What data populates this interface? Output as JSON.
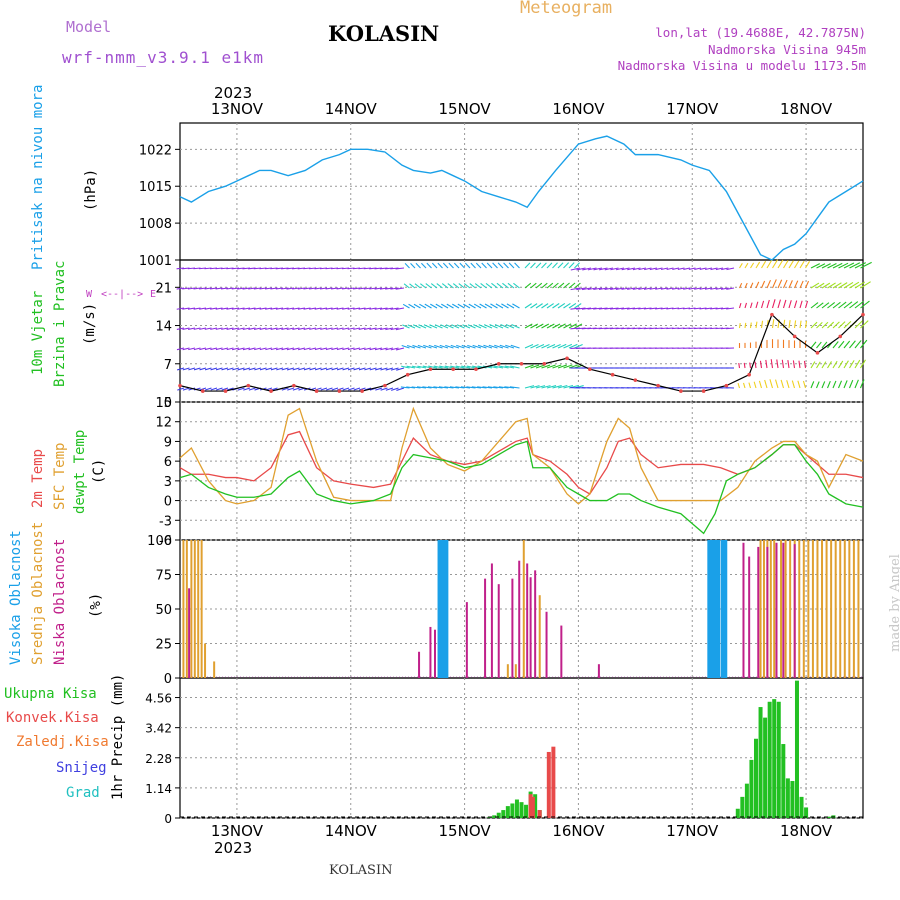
{
  "header": {
    "model_label": "Model",
    "model_name": "wrf-nmm_v3.9.1 e1km",
    "station": "KOLASIN",
    "meteogram_label": "Meteogram",
    "lonlat": "lon,lat (19.4688E, 42.7875N)",
    "elevation": "Nadmorska Visina 945m",
    "model_elevation": "Nadmorska Visina u modelu 1173.5m",
    "year": "2023",
    "footer_station": "KOLASIN",
    "watermark": "made by Angel"
  },
  "colors": {
    "pressure": "#1aa0e8",
    "t2m": "#e84a4a",
    "sfc": "#e0a030",
    "dewpt": "#22c022",
    "high_cloud": "#1aa0e8",
    "mid_cloud": "#e0a030",
    "low_cloud": "#c0208a",
    "total_rain": "#22c022",
    "conv_rain": "#e84a4a",
    "frozen": "#f07a30",
    "snow": "#4040e0",
    "graupel": "#20c0c0",
    "wind_label": "#22c022",
    "axes_label": "#1a9ad8"
  },
  "chart_data": [
    {
      "type": "line",
      "panel": "pressure",
      "labels": [
        "Pritisak na nivou mora",
        "(hPa)"
      ],
      "yticks": [
        1001,
        1008,
        1015,
        1022
      ],
      "ylim": [
        1001,
        1027
      ],
      "xticks": [
        "13NOV",
        "14NOV",
        "15NOV",
        "16NOV",
        "17NOV",
        "18NOV"
      ],
      "x_day_range": [
        12.5,
        18.5
      ],
      "series": [
        {
          "key": "pressure",
          "x": [
            12.5,
            12.6,
            12.75,
            12.9,
            13.0,
            13.1,
            13.2,
            13.3,
            13.45,
            13.6,
            13.75,
            13.9,
            14.0,
            14.15,
            14.3,
            14.45,
            14.55,
            14.7,
            14.8,
            14.9,
            15.0,
            15.15,
            15.3,
            15.45,
            15.55,
            15.65,
            15.8,
            16.0,
            16.15,
            16.25,
            16.4,
            16.5,
            16.7,
            16.9,
            17.0,
            17.15,
            17.3,
            17.45,
            17.6,
            17.7,
            17.75,
            17.8,
            17.9,
            18.0,
            18.1,
            18.2,
            18.35,
            18.5
          ],
          "values": [
            1013,
            1012,
            1014,
            1015,
            1016,
            1017,
            1018,
            1018,
            1017,
            1018,
            1020,
            1021,
            1022,
            1022,
            1021.5,
            1019,
            1018,
            1017.5,
            1018,
            1017,
            1016,
            1014,
            1013,
            1012,
            1011,
            1014,
            1018,
            1023,
            1024,
            1024.5,
            1023,
            1021,
            1021,
            1020,
            1019,
            1018,
            1014,
            1008,
            1002,
            1001,
            1002,
            1003,
            1004,
            1006,
            1009,
            1012,
            1014,
            1016
          ]
        }
      ]
    },
    {
      "type": "scatter",
      "panel": "wind",
      "labels": [
        "10m Vjetar",
        "Brzina i Pravac",
        "(m/s)"
      ],
      "yticks": [
        0,
        7,
        14,
        21
      ],
      "ylim": [
        0,
        26
      ],
      "series": [
        {
          "key": "wind_speed",
          "x": [
            12.5,
            12.7,
            12.9,
            13.1,
            13.3,
            13.5,
            13.7,
            13.9,
            14.1,
            14.3,
            14.5,
            14.7,
            14.9,
            15.1,
            15.3,
            15.5,
            15.7,
            15.9,
            16.1,
            16.3,
            16.5,
            16.7,
            16.9,
            17.1,
            17.3,
            17.5,
            17.7,
            17.9,
            18.1,
            18.3,
            18.5
          ],
          "values": [
            3,
            2,
            2,
            3,
            2,
            3,
            2,
            2,
            2,
            3,
            5,
            6,
            6,
            6,
            7,
            7,
            7,
            8,
            6,
            5,
            4,
            3,
            2,
            2,
            3,
            5,
            16,
            12,
            9,
            12,
            16
          ]
        }
      ]
    },
    {
      "type": "line",
      "panel": "temperature",
      "labels": [
        "2m Temp",
        "SFC Temp",
        "dewpt Temp",
        "(C)"
      ],
      "yticks": [
        -6,
        -3,
        0,
        3,
        6,
        9,
        12,
        15
      ],
      "ylim": [
        -6,
        15
      ],
      "series": [
        {
          "key": "t2m",
          "name": "2m Temp",
          "x": [
            12.5,
            12.6,
            12.75,
            12.9,
            13.0,
            13.15,
            13.3,
            13.45,
            13.55,
            13.7,
            13.85,
            14.0,
            14.2,
            14.35,
            14.45,
            14.55,
            14.7,
            14.85,
            15.0,
            15.15,
            15.3,
            15.45,
            15.55,
            15.6,
            15.75,
            15.9,
            16.0,
            16.1,
            16.25,
            16.35,
            16.45,
            16.55,
            16.7,
            16.9,
            17.1,
            17.25,
            17.4,
            17.55,
            17.7,
            17.8,
            17.9,
            18.0,
            18.1,
            18.2,
            18.35,
            18.5
          ],
          "values": [
            5,
            4,
            4,
            3.5,
            3.5,
            3,
            5,
            10,
            10.5,
            5,
            3,
            2.5,
            2,
            2.5,
            6,
            9.5,
            7,
            6,
            5.5,
            6,
            7.5,
            9,
            9.5,
            7,
            6,
            4,
            2,
            1,
            5,
            9,
            9.5,
            7,
            5,
            5.5,
            5.5,
            5,
            4,
            5,
            7,
            8.5,
            8.5,
            7,
            5.5,
            4,
            4,
            3.5
          ]
        },
        {
          "key": "sfc",
          "name": "SFC Temp",
          "x": [
            12.5,
            12.6,
            12.75,
            12.9,
            13.0,
            13.15,
            13.3,
            13.45,
            13.55,
            13.7,
            13.85,
            14.0,
            14.2,
            14.35,
            14.45,
            14.55,
            14.7,
            14.85,
            15.0,
            15.15,
            15.3,
            15.45,
            15.55,
            15.6,
            15.75,
            15.9,
            16.0,
            16.1,
            16.25,
            16.35,
            16.45,
            16.55,
            16.7,
            16.9,
            17.1,
            17.25,
            17.4,
            17.55,
            17.7,
            17.8,
            17.9,
            18.0,
            18.1,
            18.2,
            18.35,
            18.5
          ],
          "values": [
            6.5,
            8,
            3,
            0,
            -0.5,
            0,
            2,
            13,
            14,
            6,
            0.5,
            0,
            0,
            0,
            8,
            14,
            8,
            5.5,
            4.5,
            6,
            9,
            12,
            12.5,
            7,
            5,
            1,
            -0.5,
            1,
            9,
            12.5,
            11,
            5,
            0,
            0,
            0,
            0,
            2,
            6,
            8,
            9,
            9,
            7,
            6,
            2,
            7,
            6
          ]
        },
        {
          "key": "dewpt",
          "name": "dewpt Temp",
          "x": [
            12.5,
            12.6,
            12.75,
            12.9,
            13.0,
            13.15,
            13.3,
            13.45,
            13.55,
            13.7,
            13.85,
            14.0,
            14.2,
            14.35,
            14.45,
            14.55,
            14.7,
            14.85,
            15.0,
            15.15,
            15.3,
            15.45,
            15.55,
            15.6,
            15.75,
            15.9,
            16.0,
            16.1,
            16.25,
            16.35,
            16.45,
            16.55,
            16.7,
            16.9,
            17.0,
            17.1,
            17.2,
            17.3,
            17.4,
            17.55,
            17.7,
            17.8,
            17.9,
            18.0,
            18.1,
            18.2,
            18.35,
            18.5
          ],
          "values": [
            3.5,
            4,
            2,
            1,
            0.5,
            0.5,
            1,
            3.5,
            4.5,
            1,
            0,
            -0.5,
            0,
            1,
            5,
            7,
            6.5,
            6,
            5,
            5.5,
            7,
            8.5,
            9,
            5,
            5,
            2,
            1,
            0,
            0,
            1,
            1,
            0,
            -1,
            -2,
            -3.5,
            -5,
            -2,
            3,
            4,
            5,
            7,
            8.5,
            8.5,
            6,
            4,
            1,
            -0.5,
            -1
          ]
        }
      ]
    },
    {
      "type": "bar",
      "panel": "clouds",
      "labels": [
        "Visoka Oblacnost",
        "Srednja Oblacnost",
        "Niska Oblacnost",
        "(%)"
      ],
      "yticks": [
        0,
        25,
        50,
        75,
        100
      ],
      "ylim": [
        0,
        100
      ],
      "series": [
        {
          "key": "high_cloud",
          "name": "Visoka Oblacnost",
          "x": [
            14.78,
            14.8,
            14.82,
            14.84,
            17.15,
            17.17,
            17.19,
            17.21,
            17.23,
            17.27,
            17.29
          ],
          "values": [
            100,
            100,
            100,
            100,
            100,
            100,
            100,
            100,
            100,
            100,
            100
          ]
        },
        {
          "key": "mid_cloud",
          "name": "Srednja Oblacnost",
          "x": [
            12.53,
            12.56,
            12.6,
            12.63,
            12.66,
            12.69,
            12.72,
            12.8,
            15.38,
            15.45,
            15.52,
            15.66,
            17.6,
            17.63,
            17.66,
            17.69,
            17.72,
            17.78,
            17.82,
            17.86,
            17.9,
            17.94,
            17.98,
            18.02,
            18.06,
            18.1,
            18.14,
            18.18,
            18.22,
            18.26,
            18.3,
            18.34,
            18.38,
            18.42,
            18.46
          ],
          "values": [
            100,
            100,
            100,
            100,
            100,
            100,
            25,
            12,
            10,
            10,
            100,
            60,
            100,
            100,
            100,
            100,
            100,
            100,
            100,
            100,
            100,
            100,
            100,
            100,
            100,
            100,
            100,
            100,
            100,
            100,
            100,
            100,
            100,
            100,
            100
          ]
        },
        {
          "key": "low_cloud",
          "name": "Niska Oblacnost",
          "x": [
            12.58,
            14.6,
            14.7,
            14.74,
            15.02,
            15.18,
            15.24,
            15.3,
            15.42,
            15.48,
            15.55,
            15.58,
            15.62,
            15.72,
            15.85,
            16.18,
            17.45,
            17.5,
            17.58,
            17.66,
            17.74,
            17.8,
            17.9
          ],
          "values": [
            65,
            19,
            37,
            35,
            55,
            72,
            83,
            68,
            72,
            85,
            83,
            73,
            78,
            48,
            38,
            10,
            98,
            88,
            95,
            95,
            98,
            98,
            97
          ]
        }
      ]
    },
    {
      "type": "bar",
      "panel": "precip",
      "labels": [
        "Ukupna Kisa",
        "Konvek.Kisa",
        "Zaledj.Kisa",
        "Snijeg",
        "Grad",
        "1hr Precip (mm)"
      ],
      "yticks": [
        0,
        1.14,
        2.28,
        3.42,
        4.56
      ],
      "ylim": [
        0,
        5.3
      ],
      "series": [
        {
          "key": "total_rain",
          "name": "Ukupna Kisa",
          "x": [
            15.22,
            15.26,
            15.3,
            15.34,
            15.38,
            15.42,
            15.46,
            15.5,
            15.54,
            15.58,
            15.62,
            15.66,
            17.4,
            17.44,
            17.48,
            17.52,
            17.56,
            17.6,
            17.64,
            17.68,
            17.72,
            17.76,
            17.8,
            17.84,
            17.88,
            17.92,
            17.96,
            18.0,
            18.2,
            18.24
          ],
          "values": [
            0.05,
            0.1,
            0.2,
            0.3,
            0.45,
            0.55,
            0.7,
            0.6,
            0.5,
            1.0,
            0.9,
            0.3,
            0.35,
            0.8,
            1.3,
            2.2,
            3.0,
            4.2,
            3.8,
            4.4,
            4.5,
            4.4,
            2.8,
            1.5,
            1.4,
            5.2,
            0.8,
            0.4,
            0.05,
            0.1
          ]
        },
        {
          "key": "conv_rain",
          "name": "Konvek.Kisa",
          "x": [
            15.58,
            15.6,
            15.66,
            15.74,
            15.78
          ],
          "values": [
            0.9,
            0.8,
            0.3,
            2.5,
            2.7
          ]
        }
      ]
    }
  ]
}
